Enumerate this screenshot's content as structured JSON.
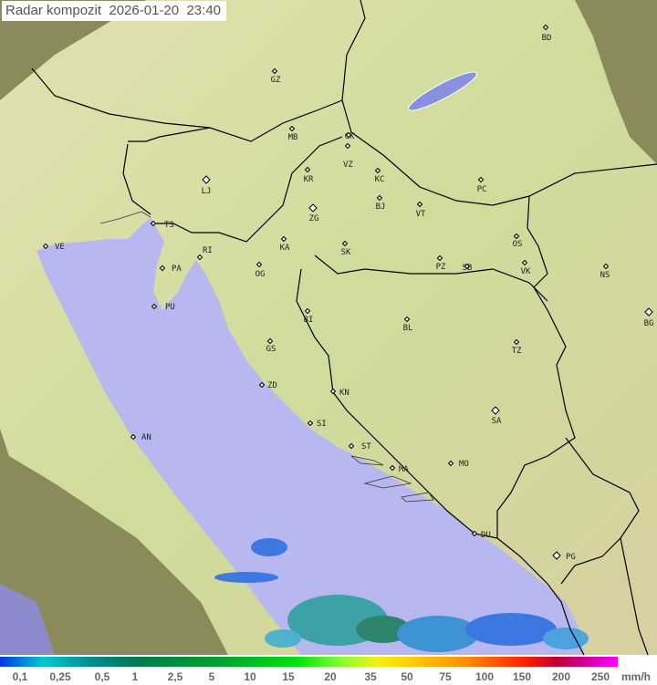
{
  "title": {
    "label": "Radar kompozit",
    "date": "2026-01-20",
    "time": "23:40"
  },
  "legend": {
    "unit": "mm/h",
    "ticks": [
      "0,1",
      "0,25",
      "0,5",
      "1",
      "2,5",
      "5",
      "10",
      "15",
      "20",
      "35",
      "50",
      "75",
      "100",
      "150",
      "200",
      "250"
    ],
    "colors": [
      "#0038e0",
      "#00c8d0",
      "#007a50",
      "#00e010",
      "#f0f010",
      "#ff8800",
      "#ff2000",
      "#c00030",
      "#ff00ff"
    ]
  },
  "map": {
    "colors": {
      "sea": "#b8b8f0",
      "land": "#c8d8a0",
      "outside_coverage": "#8a8a5a",
      "lake": "#8890e0",
      "border": "#000000"
    },
    "cities": [
      "GZ",
      "BD",
      "MB",
      "CK",
      "VZ",
      "KR",
      "KC",
      "PC",
      "LJ",
      "ZG",
      "BJ",
      "VT",
      "TS",
      "VE",
      "KA",
      "SK",
      "OS",
      "RI",
      "PA",
      "OG",
      "PZ",
      "SB",
      "VK",
      "NS",
      "PU",
      "BI",
      "BL",
      "BG",
      "GS",
      "TZ",
      "ZD",
      "KN",
      "SA",
      "SI",
      "AN",
      "ST",
      "MA",
      "MO",
      "DU",
      "PG"
    ]
  }
}
